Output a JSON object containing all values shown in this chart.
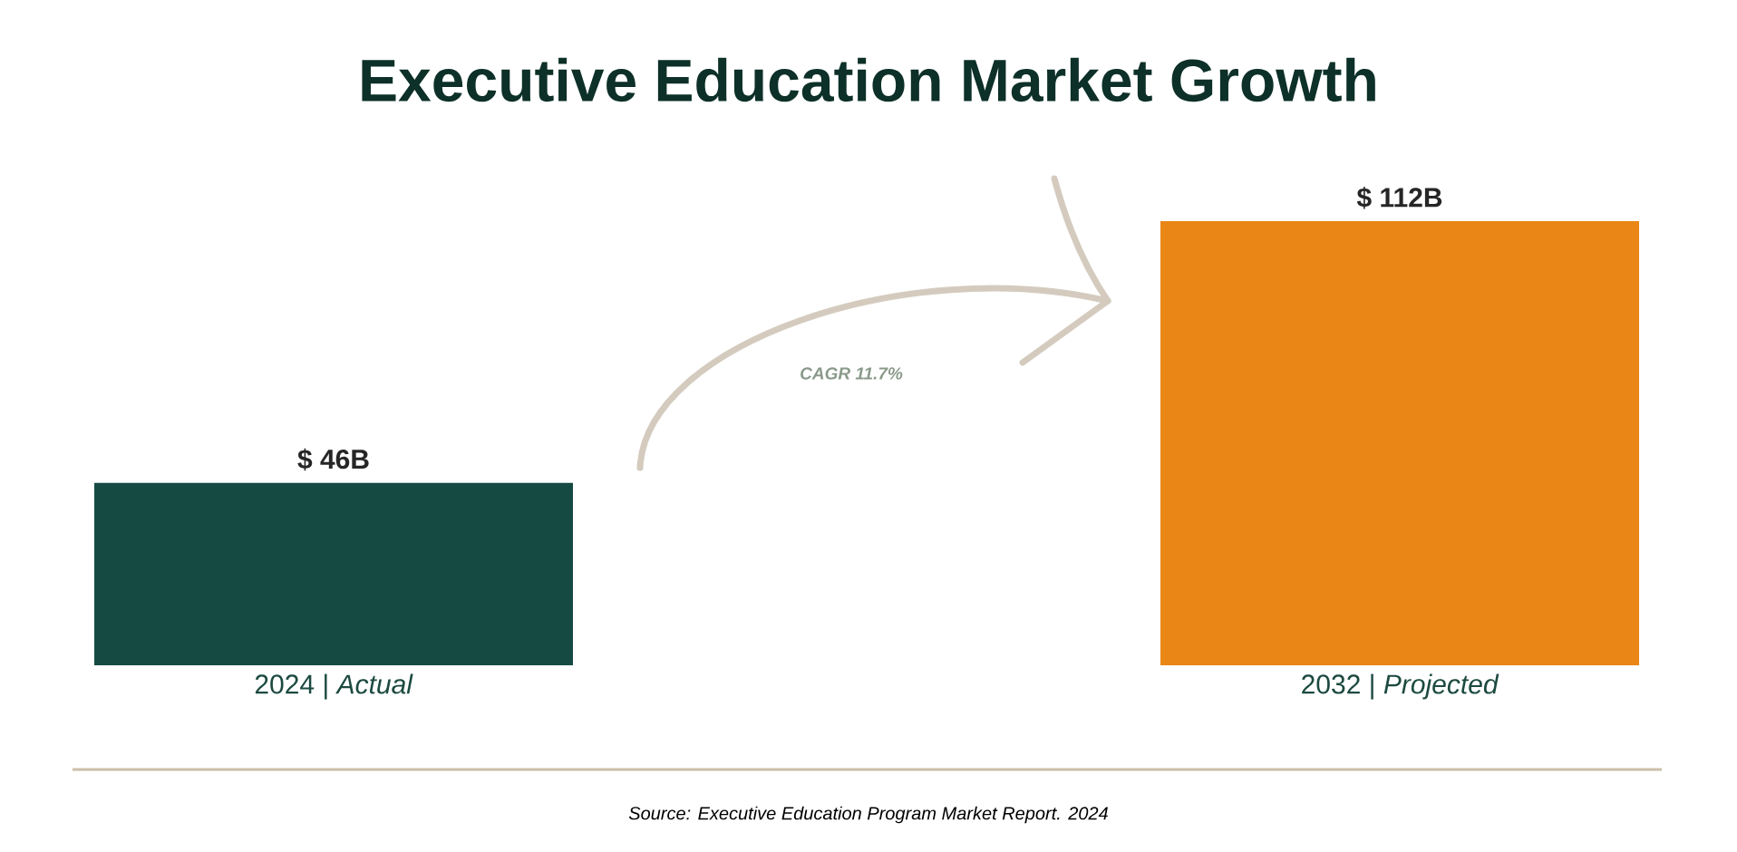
{
  "chart_data": {
    "type": "bar",
    "title": "Executive Education Market Growth",
    "categories": [
      "2024 | *Actual*",
      "2032 | *Projected*"
    ],
    "values": [
      46,
      112
    ],
    "colors": [
      "#154a42",
      "#e98616"
    ],
    "value_labels": [
      "$ 46B",
      "$ 112B"
    ],
    "annotations": [
      "CAGR 11.7%",
      "Source: Executive Education Program Market Report. 2024"
    ]
  }
}
